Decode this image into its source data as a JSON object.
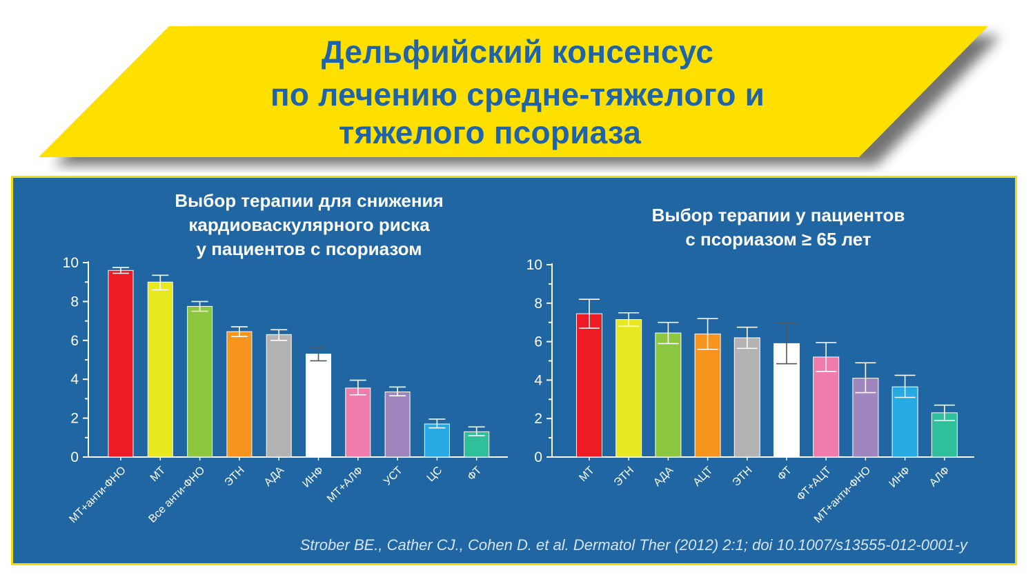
{
  "banner": {
    "title_lines": [
      "Дельфийский консенсус",
      "по лечению средне-тяжелого и",
      "тяжелого псориаза"
    ],
    "fill_color": "#fddf00",
    "text_color": "#1f64a8"
  },
  "panel": {
    "background": "#2066a3",
    "border_color": "#f5dc00",
    "citation": "Strober BE., Cather CJ., Cohen D. et al. Dermatol Ther (2012) 2:1; doi 10.1007/s13555-012-0001-y"
  },
  "chart_data": [
    {
      "type": "bar",
      "title": "Выбор терапии для снижения\nкардиоваскулярного риска\nу пациентов с псориазом",
      "xlabel": "",
      "ylabel": "",
      "ylim": [
        0,
        10
      ],
      "yticks": [
        "0",
        "2",
        "4",
        "6",
        "8",
        "10"
      ],
      "grid": false,
      "categories": [
        "МТ+анти-ФНО",
        "МТ",
        "Все анти-ФНО",
        "ЭТН",
        "АДА",
        "ИНФ",
        "МТ+АЛФ",
        "УСТ",
        "ЦС",
        "ФТ"
      ],
      "values": [
        9.6,
        9.0,
        7.75,
        6.45,
        6.3,
        5.3,
        3.55,
        3.35,
        1.7,
        1.3
      ],
      "error_low": [
        9.45,
        8.6,
        7.5,
        6.2,
        6.0,
        4.95,
        3.2,
        3.15,
        1.5,
        1.1
      ],
      "error_high": [
        9.75,
        9.35,
        8.0,
        6.7,
        6.55,
        5.65,
        3.95,
        3.6,
        1.95,
        1.55
      ],
      "colors": [
        "#ed1c24",
        "#e8e820",
        "#8dc63f",
        "#f7941d",
        "#b3b3b3",
        "#ffffff",
        "#f07cac",
        "#a086be",
        "#27a9e1",
        "#2fbf9b"
      ]
    },
    {
      "type": "bar",
      "title": "Выбор терапии у пациентов\nс псориазом ≥ 65 лет",
      "xlabel": "",
      "ylabel": "",
      "ylim": [
        0,
        10
      ],
      "yticks": [
        "0",
        "2",
        "4",
        "6",
        "8",
        "10"
      ],
      "grid": false,
      "categories": [
        "МТ",
        "ЭТН",
        "АДА",
        "АЦТ",
        "ЭТН",
        "ФТ",
        "ФТ+АЦТ",
        "МТ+анти-ФНО",
        "ИНФ",
        "АЛФ"
      ],
      "values": [
        7.45,
        7.15,
        6.45,
        6.4,
        6.2,
        5.9,
        5.2,
        4.1,
        3.65,
        2.3
      ],
      "error_low": [
        6.7,
        6.8,
        5.9,
        5.6,
        5.65,
        4.85,
        4.45,
        3.35,
        3.1,
        1.9
      ],
      "error_high": [
        8.2,
        7.5,
        7.0,
        7.2,
        6.75,
        6.95,
        5.95,
        4.9,
        4.25,
        2.7
      ],
      "colors": [
        "#ed1c24",
        "#e8e820",
        "#8dc63f",
        "#f7941d",
        "#b3b3b3",
        "#ffffff",
        "#f07cac",
        "#a086be",
        "#27a9e1",
        "#2fbf9b"
      ]
    }
  ]
}
